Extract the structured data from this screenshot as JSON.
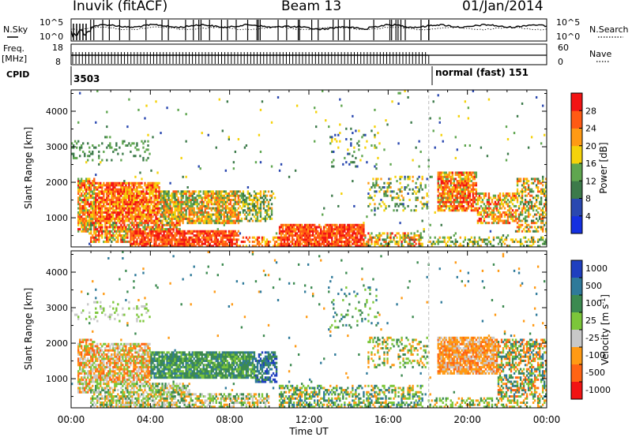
{
  "header": {
    "station": "Inuvik (fitACF)",
    "beam": "Beam 13",
    "date": "01/Jan/2014"
  },
  "panels": {
    "nsky_label": "N.Sky",
    "nsky_ticks": [
      "10^5",
      "10^0"
    ],
    "nsearch_label": "N.Search",
    "nsearch_ticks": [
      "10^5",
      "10^0"
    ],
    "freq_label": "Freq.",
    "freq_unit": "[MHz]",
    "freq_ticks": [
      "18",
      "8"
    ],
    "nave_label": "Nave",
    "nave_ticks": [
      "60",
      "0"
    ],
    "cpid_label": "CPID",
    "cpid_values": [
      "3503",
      "normal (fast) 151"
    ]
  },
  "chart_data": [
    {
      "type": "heatmap",
      "quantity": "Power",
      "title": "",
      "xlabel": "",
      "ylabel": "Slant Range [km]",
      "xlim": [
        "00:00",
        "24:00"
      ],
      "ylim": [
        180,
        4600
      ],
      "y_ticks": [
        1000,
        2000,
        3000,
        4000
      ],
      "colorbar_label": "Power [dB]",
      "colorbar_ticks": [
        4,
        8,
        12,
        16,
        20,
        24,
        28
      ],
      "colorbar_range": [
        0,
        32
      ],
      "colors": [
        "#1530e0",
        "#2a48b0",
        "#3c7a4a",
        "#5fa64f",
        "#f5d20a",
        "#ff9a14",
        "#ff5a14",
        "#f21414"
      ],
      "cpid_change_hour": 18.05,
      "regions": [
        {
          "t": [
            0.3,
            1.2
          ],
          "r": [
            600,
            2100
          ],
          "lo": 12,
          "hi": 30,
          "d": 0.8
        },
        {
          "t": [
            1.2,
            4.5
          ],
          "r": [
            900,
            2000
          ],
          "lo": 16,
          "hi": 32,
          "d": 0.85
        },
        {
          "t": [
            4.5,
            8.5
          ],
          "r": [
            850,
            1800
          ],
          "lo": 10,
          "hi": 28,
          "d": 0.8
        },
        {
          "t": [
            8.5,
            10.2
          ],
          "r": [
            900,
            1800
          ],
          "lo": 8,
          "hi": 24,
          "d": 0.55
        },
        {
          "t": [
            1.0,
            5.5
          ],
          "r": [
            300,
            900
          ],
          "lo": 10,
          "hi": 32,
          "d": 0.7
        },
        {
          "t": [
            3.0,
            8.5
          ],
          "r": [
            200,
            650
          ],
          "lo": 22,
          "hi": 32,
          "d": 0.85
        },
        {
          "t": [
            8.2,
            12.5
          ],
          "r": [
            200,
            500
          ],
          "lo": 16,
          "hi": 30,
          "d": 0.5
        },
        {
          "t": [
            10.5,
            12.6
          ],
          "r": [
            200,
            800
          ],
          "lo": 22,
          "hi": 32,
          "d": 0.85
        },
        {
          "t": [
            12.6,
            14.8
          ],
          "r": [
            200,
            800
          ],
          "lo": 22,
          "hi": 32,
          "d": 0.85
        },
        {
          "t": [
            14.8,
            17.8
          ],
          "r": [
            200,
            600
          ],
          "lo": 10,
          "hi": 30,
          "d": 0.55
        },
        {
          "t": [
            0.0,
            4.0
          ],
          "r": [
            2600,
            3200
          ],
          "lo": 8,
          "hi": 16,
          "d": 0.15
        },
        {
          "t": [
            13.0,
            15.5
          ],
          "r": [
            2400,
            3600
          ],
          "lo": 4,
          "hi": 20,
          "d": 0.12
        },
        {
          "t": [
            15.0,
            18.0
          ],
          "r": [
            1200,
            2200
          ],
          "lo": 6,
          "hi": 22,
          "d": 0.25
        },
        {
          "t": [
            18.5,
            20.5
          ],
          "r": [
            1200,
            2300
          ],
          "lo": 14,
          "hi": 32,
          "d": 0.8
        },
        {
          "t": [
            20.5,
            22.5
          ],
          "r": [
            800,
            1700
          ],
          "lo": 12,
          "hi": 30,
          "d": 0.55
        },
        {
          "t": [
            22.5,
            24.0
          ],
          "r": [
            600,
            2100
          ],
          "lo": 8,
          "hi": 28,
          "d": 0.5
        },
        {
          "t": [
            18.0,
            24.0
          ],
          "r": [
            200,
            500
          ],
          "lo": 8,
          "hi": 22,
          "d": 0.4
        }
      ]
    },
    {
      "type": "heatmap",
      "quantity": "Velocity",
      "title": "",
      "xlabel": "Time UT",
      "ylabel": "Slant Range [km]",
      "xlim": [
        "00:00",
        "24:00"
      ],
      "x_ticks": [
        "00:00",
        "04:00",
        "08:00",
        "12:00",
        "16:00",
        "20:00",
        "00:00"
      ],
      "ylim": [
        180,
        4600
      ],
      "y_ticks": [
        1000,
        2000,
        3000,
        4000
      ],
      "colorbar_label": "Velocity [m s^-1]",
      "colorbar_ticks": [
        "1000",
        "500",
        "100",
        "25",
        "-25",
        "-100",
        "-500",
        "-1000"
      ],
      "colors": [
        "#1f3fbf",
        "#2f7a9a",
        "#3c8a50",
        "#7cc63a",
        "#c8c8c8",
        "#ff9a14",
        "#ff6414",
        "#f21414"
      ],
      "cpid_change_hour": 18.05,
      "regions": [
        {
          "t": [
            0.3,
            1.2
          ],
          "r": [
            600,
            2100
          ],
          "cls": [
            5,
            6,
            4,
            3
          ],
          "d": 0.75
        },
        {
          "t": [
            1.2,
            4.0
          ],
          "r": [
            900,
            2000
          ],
          "cls": [
            5,
            3,
            6,
            4
          ],
          "d": 0.75
        },
        {
          "t": [
            4.0,
            9.5
          ],
          "r": [
            1000,
            1800
          ],
          "cls": [
            2,
            2,
            1,
            3
          ],
          "d": 0.85
        },
        {
          "t": [
            9.3,
            10.4
          ],
          "r": [
            900,
            1800
          ],
          "cls": [
            0,
            1,
            2
          ],
          "d": 0.6
        },
        {
          "t": [
            1.0,
            6.0
          ],
          "r": [
            200,
            900
          ],
          "cls": [
            4,
            3,
            5,
            2
          ],
          "d": 0.65
        },
        {
          "t": [
            6.0,
            10.0
          ],
          "r": [
            200,
            600
          ],
          "cls": [
            4,
            5,
            3,
            2
          ],
          "d": 0.55
        },
        {
          "t": [
            10.5,
            17.8
          ],
          "r": [
            200,
            800
          ],
          "cls": [
            2,
            3,
            5,
            1
          ],
          "d": 0.5
        },
        {
          "t": [
            13.0,
            15.5
          ],
          "r": [
            2400,
            3600
          ],
          "cls": [
            2,
            1,
            3
          ],
          "d": 0.1
        },
        {
          "t": [
            15.0,
            18.0
          ],
          "r": [
            1300,
            2200
          ],
          "cls": [
            5,
            3,
            2
          ],
          "d": 0.25
        },
        {
          "t": [
            18.5,
            21.5
          ],
          "r": [
            1100,
            2200
          ],
          "cls": [
            5,
            6,
            5,
            4
          ],
          "d": 0.85
        },
        {
          "t": [
            21.5,
            24.0
          ],
          "r": [
            500,
            2100
          ],
          "cls": [
            5,
            2,
            3,
            6,
            1
          ],
          "d": 0.55
        },
        {
          "t": [
            18.0,
            24.0
          ],
          "r": [
            200,
            500
          ],
          "cls": [
            5,
            3,
            2
          ],
          "d": 0.35
        },
        {
          "t": [
            0.0,
            4.0
          ],
          "r": [
            2600,
            3200
          ],
          "cls": [
            4,
            3
          ],
          "d": 0.15
        }
      ]
    }
  ]
}
